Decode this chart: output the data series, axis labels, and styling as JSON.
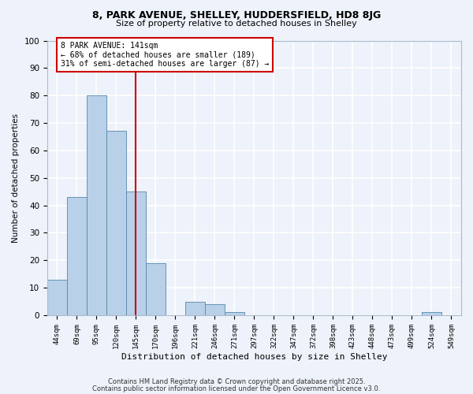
{
  "title1": "8, PARK AVENUE, SHELLEY, HUDDERSFIELD, HD8 8JG",
  "title2": "Size of property relative to detached houses in Shelley",
  "xlabel": "Distribution of detached houses by size in Shelley",
  "ylabel": "Number of detached properties",
  "bar_labels": [
    "44sqm",
    "69sqm",
    "95sqm",
    "120sqm",
    "145sqm",
    "170sqm",
    "196sqm",
    "221sqm",
    "246sqm",
    "271sqm",
    "297sqm",
    "322sqm",
    "347sqm",
    "372sqm",
    "398sqm",
    "423sqm",
    "448sqm",
    "473sqm",
    "499sqm",
    "524sqm",
    "549sqm"
  ],
  "bar_values": [
    13,
    43,
    80,
    67,
    45,
    19,
    0,
    5,
    4,
    1,
    0,
    0,
    0,
    0,
    0,
    0,
    0,
    0,
    0,
    1,
    0
  ],
  "bar_color": "#b8d0e8",
  "bar_edge_color": "#5588aa",
  "vline_x": 4,
  "vline_color": "#cc0000",
  "annotation_title": "8 PARK AVENUE: 141sqm",
  "annotation_line1": "← 68% of detached houses are smaller (189)",
  "annotation_line2": "31% of semi-detached houses are larger (87) →",
  "annotation_box_color": "#cc0000",
  "ylim": [
    0,
    100
  ],
  "yticks": [
    0,
    10,
    20,
    30,
    40,
    50,
    60,
    70,
    80,
    90,
    100
  ],
  "footer1": "Contains HM Land Registry data © Crown copyright and database right 2025.",
  "footer2": "Contains public sector information licensed under the Open Government Licence v3.0.",
  "bg_color": "#eef2fa",
  "grid_color": "#ffffff"
}
